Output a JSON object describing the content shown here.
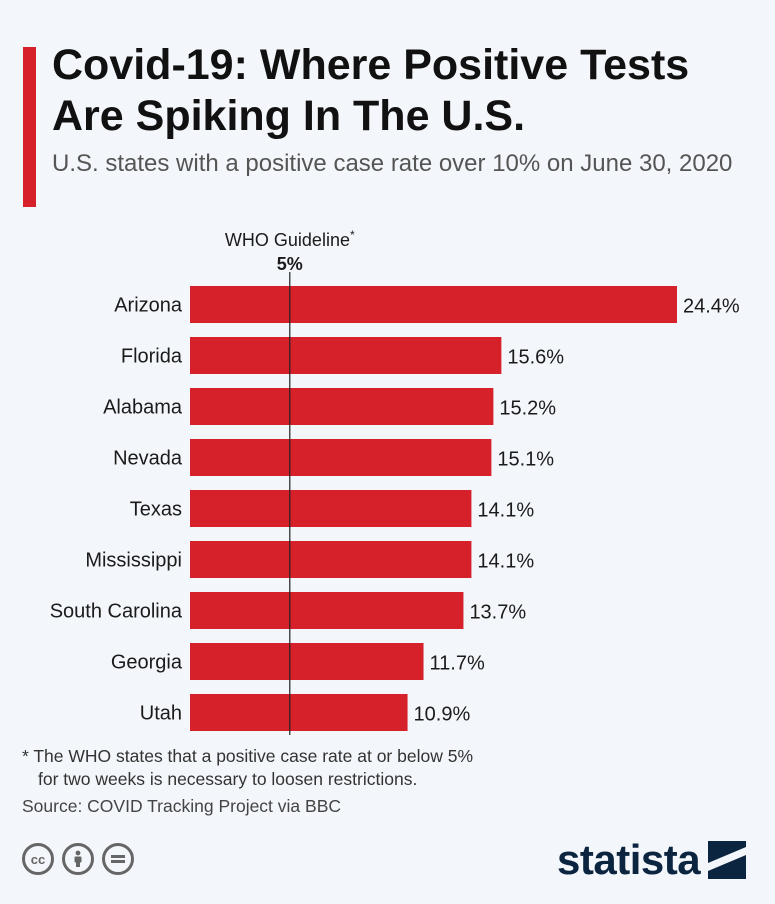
{
  "title": "Covid-19: Where Positive Tests Are Spiking In The U.S.",
  "subtitle": "U.S. states with a positive case rate over 10% on June 30, 2020",
  "chart_data": {
    "type": "bar",
    "orientation": "horizontal",
    "categories": [
      "Arizona",
      "Florida",
      "Alabama",
      "Nevada",
      "Texas",
      "Mississippi",
      "South Carolina",
      "Georgia",
      "Utah"
    ],
    "values": [
      24.4,
      15.6,
      15.2,
      15.1,
      14.1,
      14.1,
      13.7,
      11.7,
      10.9
    ],
    "value_labels": [
      "24.4%",
      "15.6%",
      "15.2%",
      "15.1%",
      "14.1%",
      "14.1%",
      "13.7%",
      "11.7%",
      "10.9%"
    ],
    "xlim": [
      0,
      24.4
    ],
    "bar_color": "#d6202a",
    "reference_line": {
      "value": 5,
      "label": "WHO Guideline",
      "marker": "*",
      "value_label": "5%"
    }
  },
  "footnote": {
    "line1": "* The WHO states that a positive case rate at or below 5%",
    "line2": "for two weeks is necessary to loosen restrictions."
  },
  "source": "Source: COVID Tracking Project via BBC",
  "license_icons": [
    "cc-icon",
    "attribution-icon",
    "no-derivatives-icon"
  ],
  "brand": {
    "name": "statista",
    "color": "#0b2440"
  },
  "accent_color": "#d6202a"
}
